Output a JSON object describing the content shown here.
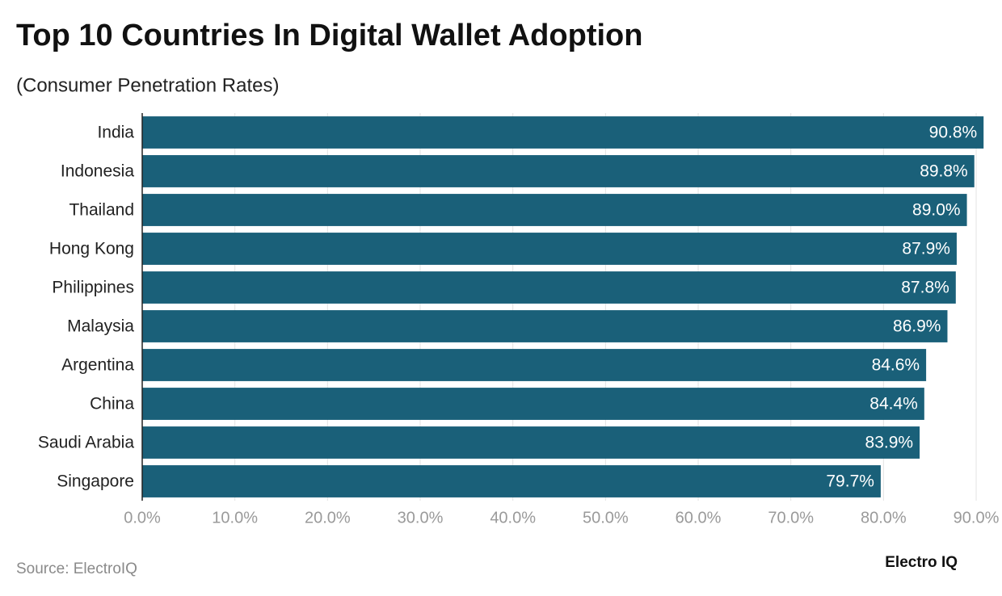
{
  "chart_data": {
    "type": "bar",
    "orientation": "horizontal",
    "title": "Top 10 Countries In Digital Wallet Adoption",
    "subtitle": "(Consumer Penetration Rates)",
    "categories": [
      "India",
      "Indonesia",
      "Thailand",
      "Hong Kong",
      "Philippines",
      "Malaysia",
      "Argentina",
      "China",
      "Saudi Arabia",
      "Singapore"
    ],
    "values": [
      90.8,
      89.8,
      89.0,
      87.9,
      87.8,
      86.9,
      84.6,
      84.4,
      83.9,
      79.7
    ],
    "value_labels": [
      "90.8%",
      "89.8%",
      "89.0%",
      "87.9%",
      "87.8%",
      "86.9%",
      "84.6%",
      "84.4%",
      "83.9%",
      "79.7%"
    ],
    "color": "#1a6079",
    "xlim": [
      0,
      91
    ],
    "xticks": [
      {
        "value": 0,
        "label": "0.0%"
      },
      {
        "value": 10,
        "label": "10.0%"
      },
      {
        "value": 20,
        "label": "20.0%"
      },
      {
        "value": 30,
        "label": "30.0%"
      },
      {
        "value": 40,
        "label": "40.0%"
      },
      {
        "value": 50,
        "label": "50.0%"
      },
      {
        "value": 60,
        "label": "60.0%"
      },
      {
        "value": 70,
        "label": "70.0%"
      },
      {
        "value": 80,
        "label": "80.0%"
      },
      {
        "value": 90,
        "label": "90.0%"
      }
    ],
    "grid": true,
    "source": "Source: ElectroIQ",
    "brand": "Electro IQ"
  }
}
